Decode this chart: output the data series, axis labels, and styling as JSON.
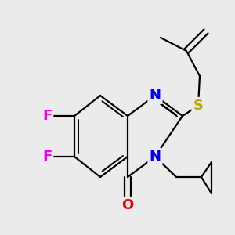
{
  "background_color": "#ebebeb",
  "atom_colors": {
    "F": "#ee00ee",
    "N": "#0000ee",
    "O": "#ee0000",
    "S": "#bbaa00",
    "C": "#000000"
  },
  "bond_color": "#000000",
  "bond_width": 1.6,
  "font_size": 13
}
